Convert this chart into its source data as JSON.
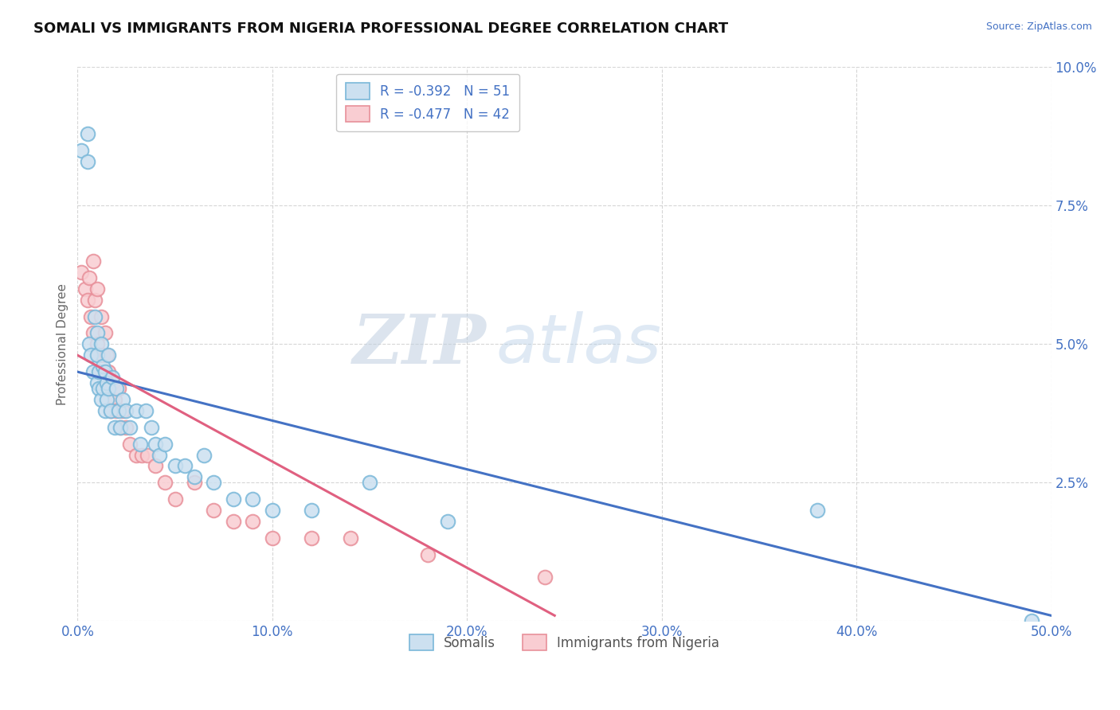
{
  "title": "SOMALI VS IMMIGRANTS FROM NIGERIA PROFESSIONAL DEGREE CORRELATION CHART",
  "source": "Source: ZipAtlas.com",
  "ylabel": "Professional Degree",
  "xlim": [
    0,
    0.5
  ],
  "ylim": [
    0,
    0.1
  ],
  "xticks": [
    0.0,
    0.1,
    0.2,
    0.3,
    0.4,
    0.5
  ],
  "yticks": [
    0.0,
    0.025,
    0.05,
    0.075,
    0.1
  ],
  "blue_dot_color": "#7ab8d9",
  "blue_fill_color": "#cce0f0",
  "pink_dot_color": "#e8909a",
  "pink_fill_color": "#f9cdd2",
  "blue_line_color": "#4472c4",
  "pink_line_color": "#e06080",
  "R_blue": -0.392,
  "N_blue": 51,
  "R_pink": -0.477,
  "N_pink": 42,
  "legend_labels": [
    "Somalis",
    "Immigrants from Nigeria"
  ],
  "watermark_zip": "ZIP",
  "watermark_atlas": "atlas",
  "background_color": "#ffffff",
  "grid_color": "#cccccc",
  "blue_x": [
    0.002,
    0.005,
    0.005,
    0.006,
    0.007,
    0.008,
    0.009,
    0.01,
    0.01,
    0.01,
    0.011,
    0.011,
    0.012,
    0.012,
    0.013,
    0.013,
    0.014,
    0.014,
    0.015,
    0.015,
    0.016,
    0.016,
    0.017,
    0.018,
    0.019,
    0.02,
    0.021,
    0.022,
    0.023,
    0.025,
    0.027,
    0.03,
    0.032,
    0.035,
    0.038,
    0.04,
    0.042,
    0.045,
    0.05,
    0.055,
    0.06,
    0.065,
    0.07,
    0.08,
    0.09,
    0.1,
    0.12,
    0.15,
    0.19,
    0.38,
    0.49
  ],
  "blue_y": [
    0.085,
    0.088,
    0.083,
    0.05,
    0.048,
    0.045,
    0.055,
    0.043,
    0.048,
    0.052,
    0.045,
    0.042,
    0.05,
    0.04,
    0.046,
    0.042,
    0.045,
    0.038,
    0.043,
    0.04,
    0.042,
    0.048,
    0.038,
    0.044,
    0.035,
    0.042,
    0.038,
    0.035,
    0.04,
    0.038,
    0.035,
    0.038,
    0.032,
    0.038,
    0.035,
    0.032,
    0.03,
    0.032,
    0.028,
    0.028,
    0.026,
    0.03,
    0.025,
    0.022,
    0.022,
    0.02,
    0.02,
    0.025,
    0.018,
    0.02,
    0.0
  ],
  "pink_x": [
    0.002,
    0.004,
    0.005,
    0.006,
    0.007,
    0.008,
    0.008,
    0.009,
    0.01,
    0.01,
    0.011,
    0.012,
    0.012,
    0.013,
    0.014,
    0.015,
    0.015,
    0.016,
    0.017,
    0.018,
    0.019,
    0.02,
    0.021,
    0.022,
    0.023,
    0.025,
    0.027,
    0.03,
    0.033,
    0.036,
    0.04,
    0.045,
    0.05,
    0.06,
    0.07,
    0.08,
    0.09,
    0.1,
    0.12,
    0.14,
    0.18,
    0.24
  ],
  "pink_y": [
    0.063,
    0.06,
    0.058,
    0.062,
    0.055,
    0.065,
    0.052,
    0.058,
    0.05,
    0.06,
    0.048,
    0.055,
    0.045,
    0.048,
    0.052,
    0.042,
    0.048,
    0.045,
    0.038,
    0.043,
    0.04,
    0.038,
    0.042,
    0.035,
    0.038,
    0.035,
    0.032,
    0.03,
    0.03,
    0.03,
    0.028,
    0.025,
    0.022,
    0.025,
    0.02,
    0.018,
    0.018,
    0.015,
    0.015,
    0.015,
    0.012,
    0.008
  ]
}
